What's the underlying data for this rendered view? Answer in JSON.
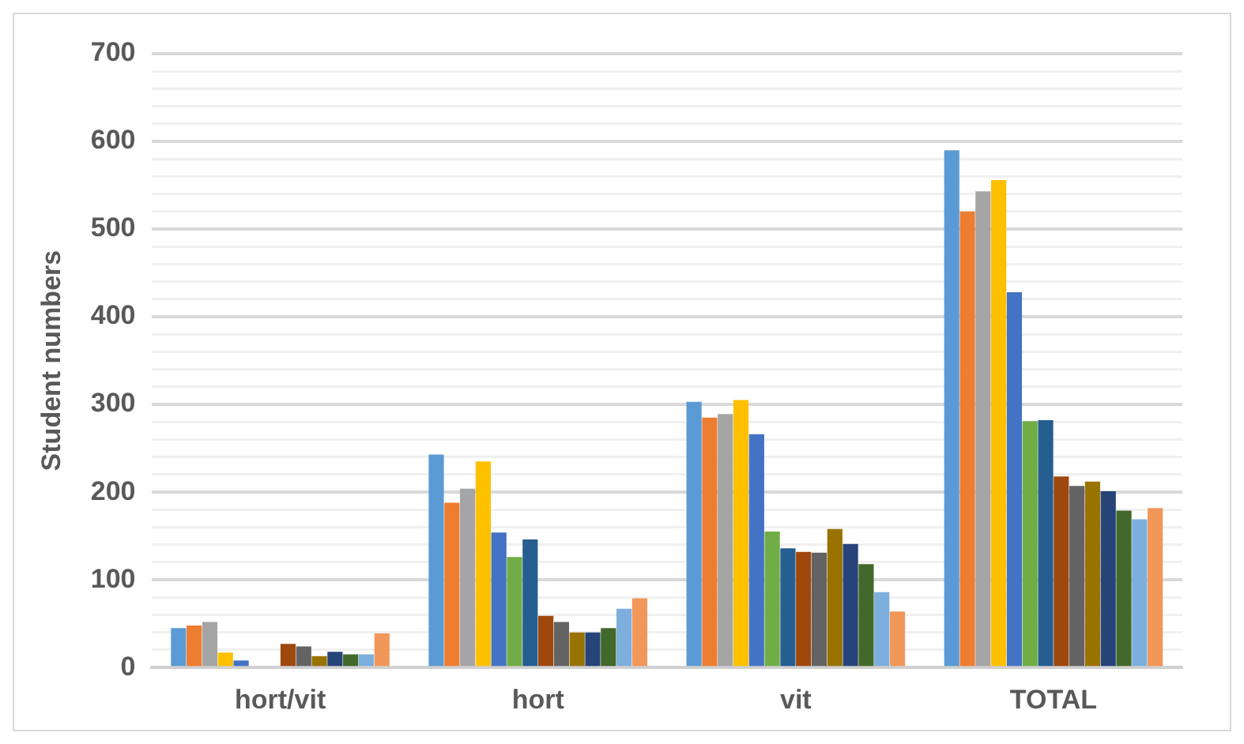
{
  "chart_data": {
    "type": "bar",
    "ylabel": "Student numbers",
    "categories": [
      "hort/vit",
      "hort",
      "vit",
      "TOTAL"
    ],
    "series": [
      {
        "color": "#5b9bd5",
        "values": [
          45,
          243,
          303,
          590
        ]
      },
      {
        "color": "#ed7d31",
        "values": [
          48,
          188,
          285,
          520
        ]
      },
      {
        "color": "#a5a5a5",
        "values": [
          52,
          204,
          289,
          543
        ]
      },
      {
        "color": "#ffc000",
        "values": [
          17,
          235,
          305,
          556
        ]
      },
      {
        "color": "#4472c4",
        "values": [
          8,
          154,
          266,
          428
        ]
      },
      {
        "color": "#70ad47",
        "values": [
          0,
          126,
          155,
          281
        ]
      },
      {
        "color": "#255e91",
        "values": [
          0,
          146,
          136,
          282
        ]
      },
      {
        "color": "#9e480e",
        "values": [
          27,
          59,
          132,
          218
        ]
      },
      {
        "color": "#636363",
        "values": [
          24,
          52,
          131,
          207
        ]
      },
      {
        "color": "#997300",
        "values": [
          13,
          40,
          158,
          212
        ]
      },
      {
        "color": "#264478",
        "values": [
          18,
          40,
          141,
          201
        ]
      },
      {
        "color": "#43682b",
        "values": [
          15,
          45,
          118,
          179
        ]
      },
      {
        "color": "#7cafdd",
        "values": [
          15,
          67,
          86,
          169
        ]
      },
      {
        "color": "#f1975a",
        "values": [
          39,
          79,
          64,
          182
        ]
      }
    ],
    "ylim": [
      0,
      700
    ],
    "yticks": [
      0,
      {
        "value": 20,
        "label": null
      },
      {
        "value": 40,
        "label": null
      },
      {
        "value": 60,
        "label": null
      },
      {
        "value": 80,
        "label": null
      },
      100,
      {
        "value": 120,
        "label": null
      },
      {
        "value": 140,
        "label": null
      },
      {
        "value": 160,
        "label": null
      },
      {
        "value": 180,
        "label": null
      },
      200,
      {
        "value": 220,
        "label": null
      },
      {
        "value": 240,
        "label": null
      },
      {
        "value": 260,
        "label": null
      },
      {
        "value": 280,
        "label": null
      },
      300,
      {
        "value": 320,
        "label": null
      },
      {
        "value": 340,
        "label": null
      },
      {
        "value": 360,
        "label": null
      },
      {
        "value": 380,
        "label": null
      },
      400,
      {
        "value": 420,
        "label": null
      },
      {
        "value": 440,
        "label": null
      },
      {
        "value": 460,
        "label": null
      },
      {
        "value": 480,
        "label": null
      },
      500,
      {
        "value": 520,
        "label": null
      },
      {
        "value": 540,
        "label": null
      },
      {
        "value": 560,
        "label": null
      },
      {
        "value": 580,
        "label": null
      },
      600,
      {
        "value": 620,
        "label": null
      },
      {
        "value": 640,
        "label": null
      },
      {
        "value": 660,
        "label": null
      },
      {
        "value": 680,
        "label": null
      },
      700
    ],
    "grid": "y",
    "legend": false
  }
}
